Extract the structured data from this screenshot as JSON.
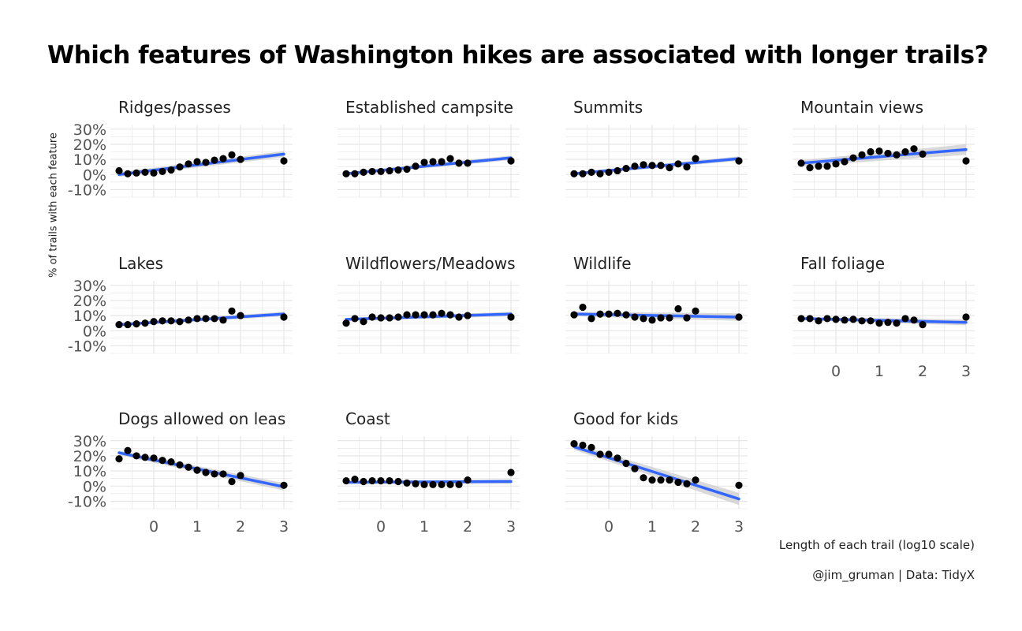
{
  "title": "Which features of Washington hikes are associated with longer trails?",
  "caption": "@jim_gruman | Data: TidyX",
  "colors": {
    "fit": "#3366FF",
    "band": "#cccccc",
    "point": "#000000",
    "grid": "#e3e3e3"
  },
  "chart_data": {
    "type": "scatter",
    "facet": "wrap",
    "ncol": 4,
    "xlabel": "Length of each trail (log10 scale)",
    "ylabel": "% of trails with each feature",
    "xlim": [
      -0.8,
      3.0
    ],
    "ylim": [
      -15,
      33
    ],
    "x_ticks": [
      0,
      1,
      2,
      3
    ],
    "x_tick_labels": [
      "0",
      "1",
      "2",
      "3"
    ],
    "y_ticks": [
      -10,
      0,
      10,
      20,
      30
    ],
    "y_tick_labels": [
      "-10%",
      "0%",
      "10%",
      "20%",
      "30%"
    ],
    "x": [
      -0.8,
      -0.6,
      -0.4,
      -0.2,
      0.0,
      0.2,
      0.4,
      0.6,
      0.8,
      1.0,
      1.2,
      1.4,
      1.6,
      1.8,
      2.0,
      3.0
    ],
    "panels": [
      {
        "name": "Ridges/passes",
        "y": [
          2.5,
          0.5,
          1,
          1.5,
          1,
          2,
          3,
          5,
          7,
          8.5,
          8,
          9.5,
          10.5,
          13,
          10,
          9
        ],
        "fit": [
          0,
          13.5
        ],
        "band": [
          1.5,
          2
        ]
      },
      {
        "name": "Established campsites",
        "y": [
          0.5,
          0.5,
          1.5,
          2,
          2,
          2.5,
          3,
          3.5,
          5.5,
          8,
          8.5,
          8.5,
          10.5,
          7.5,
          7.5,
          9
        ],
        "fit": [
          0.5,
          11
        ],
        "band": [
          1,
          1.5
        ]
      },
      {
        "name": "Summits",
        "y": [
          0.5,
          0.5,
          1.5,
          0.5,
          1.5,
          2.5,
          4,
          5.5,
          6.5,
          6,
          6,
          4.5,
          7,
          5,
          10.5,
          9
        ],
        "fit": [
          0.5,
          10.5
        ],
        "band": [
          1,
          1.5
        ]
      },
      {
        "name": "Mountain views",
        "y": [
          7.5,
          4.5,
          5.5,
          5.5,
          7,
          8.5,
          11,
          13,
          15,
          15.5,
          14,
          13,
          15,
          17,
          13.5,
          9
        ],
        "fit": [
          7.5,
          16.5
        ],
        "band": [
          2,
          3.5
        ]
      },
      {
        "name": "Lakes",
        "y": [
          4,
          4,
          4.5,
          5,
          6,
          6.5,
          6.5,
          6,
          7,
          8,
          8,
          8,
          7,
          13,
          10,
          9
        ],
        "fit": [
          4,
          11
        ],
        "band": [
          1,
          1.5
        ]
      },
      {
        "name": "Wildflowers/Meadows",
        "y": [
          5,
          8,
          6,
          9,
          8.5,
          8.5,
          9,
          10.5,
          10.5,
          10.5,
          10.5,
          11.5,
          10.5,
          9,
          10,
          9
        ],
        "fit": [
          7.5,
          11
        ],
        "band": [
          1,
          1.5
        ]
      },
      {
        "name": "Wildlife",
        "y": [
          10.5,
          15.5,
          8,
          11,
          11,
          11.5,
          10.5,
          9,
          8,
          7,
          8.5,
          8.5,
          14.5,
          8.5,
          13,
          9
        ],
        "fit": [
          11,
          9
        ],
        "band": [
          1.5,
          2.5
        ]
      },
      {
        "name": "Fall foliage",
        "y": [
          8,
          8,
          6.5,
          8,
          7.5,
          7,
          7.5,
          6.5,
          6.5,
          5,
          5.5,
          5,
          8,
          7,
          4,
          9
        ],
        "fit": [
          8,
          5.5
        ],
        "band": [
          1,
          2
        ]
      },
      {
        "name": "Dogs allowed on leash",
        "y": [
          18,
          23.5,
          20,
          19,
          18.5,
          17,
          16,
          14,
          12.5,
          10.5,
          9,
          8,
          8,
          3,
          7,
          0.5
        ],
        "fit": [
          22,
          -0.5
        ],
        "band": [
          1.5,
          2.5
        ]
      },
      {
        "name": "Coast",
        "y": [
          3.5,
          4.5,
          3,
          3.5,
          3.5,
          3.5,
          3,
          2,
          1.5,
          1,
          1,
          1,
          1,
          1,
          4,
          9
        ],
        "fit": [
          2.5,
          3
        ],
        "band": [
          1,
          1.5
        ]
      },
      {
        "name": "Good for kids",
        "y": [
          28,
          27,
          25.5,
          21,
          21,
          18.5,
          15,
          11.5,
          5.5,
          4,
          4,
          4,
          2.5,
          1.5,
          4,
          0.5
        ],
        "fit": [
          26,
          -8.5
        ],
        "band": [
          2,
          4
        ]
      }
    ]
  }
}
